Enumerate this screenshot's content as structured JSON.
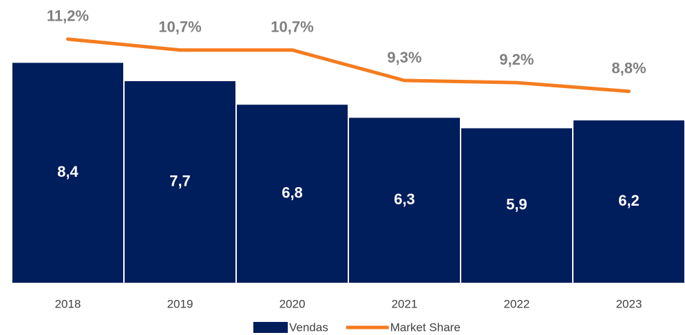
{
  "chart_data": {
    "type": "bar",
    "categories": [
      "2018",
      "2019",
      "2020",
      "2021",
      "2022",
      "2023"
    ],
    "series": [
      {
        "name": "Vendas",
        "type": "bar",
        "color": "#001d5c",
        "values": [
          8.4,
          7.7,
          6.8,
          6.3,
          5.9,
          6.2
        ],
        "value_labels": [
          "8,4",
          "7,7",
          "6,8",
          "6,3",
          "5,9",
          "6,2"
        ]
      },
      {
        "name": "Market Share",
        "type": "line",
        "axis": "y2",
        "color": "#f57c1f",
        "values": [
          11.2,
          10.7,
          10.7,
          9.3,
          9.2,
          8.8
        ],
        "value_labels": [
          "11,2%",
          "10,7%",
          "10,7%",
          "9,3%",
          "9,2%",
          "8,8%"
        ]
      }
    ],
    "ylim": [
      0,
      10.8
    ],
    "y2lim": [
      0,
      13
    ],
    "legend": "bottom"
  }
}
